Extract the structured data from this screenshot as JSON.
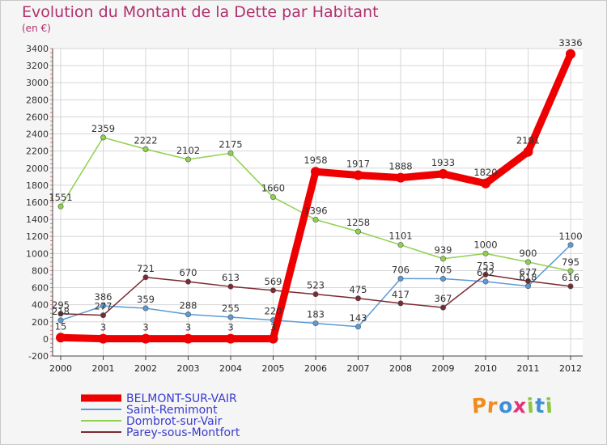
{
  "header": {
    "title": "Evolution du Montant de la Dette par Habitant",
    "unit": "(en €)"
  },
  "logo": {
    "text": "Proxiti",
    "letter_colors": [
      "#f28a1c",
      "#f28a1c",
      "#3f8fd6",
      "#e8317a",
      "#8cc63f",
      "#3f8fd6",
      "#8cc63f"
    ]
  },
  "chart_data": {
    "type": "line",
    "x": [
      "2000",
      "2001",
      "2002",
      "2003",
      "2004",
      "2005",
      "2006",
      "2007",
      "2008",
      "2009",
      "2010",
      "2011",
      "2012"
    ],
    "ylim": [
      -200,
      3400
    ],
    "yticks": [
      -200,
      0,
      200,
      400,
      600,
      800,
      1000,
      1200,
      1400,
      1600,
      1800,
      2000,
      2200,
      2400,
      2600,
      2800,
      3000,
      3200,
      3400
    ],
    "grid": true,
    "legend_position": "bottom-left",
    "series": [
      {
        "name": "Saint-Remimont",
        "color": "#5b9bd5",
        "values": [
          218,
          386,
          359,
          288,
          255,
          220,
          183,
          143,
          706,
          705,
          672,
          618,
          1100
        ]
      },
      {
        "name": "Dombrot-sur-Vair",
        "color": "#8fd14f",
        "values": [
          1551,
          2359,
          2222,
          2102,
          2175,
          1660,
          1396,
          1258,
          1101,
          939,
          1000,
          900,
          795
        ]
      },
      {
        "name": "Parey-sous-Montfort",
        "color": "#7b2a32",
        "values": [
          295,
          277,
          721,
          670,
          613,
          569,
          523,
          475,
          417,
          367,
          753,
          677,
          616
        ]
      },
      {
        "name": "BELMONT-SUR-VAIR",
        "color": "#ee0000",
        "values": [
          15,
          3,
          3,
          3,
          3,
          3,
          1958,
          1917,
          1888,
          1933,
          1820,
          2191,
          3336
        ]
      }
    ]
  }
}
